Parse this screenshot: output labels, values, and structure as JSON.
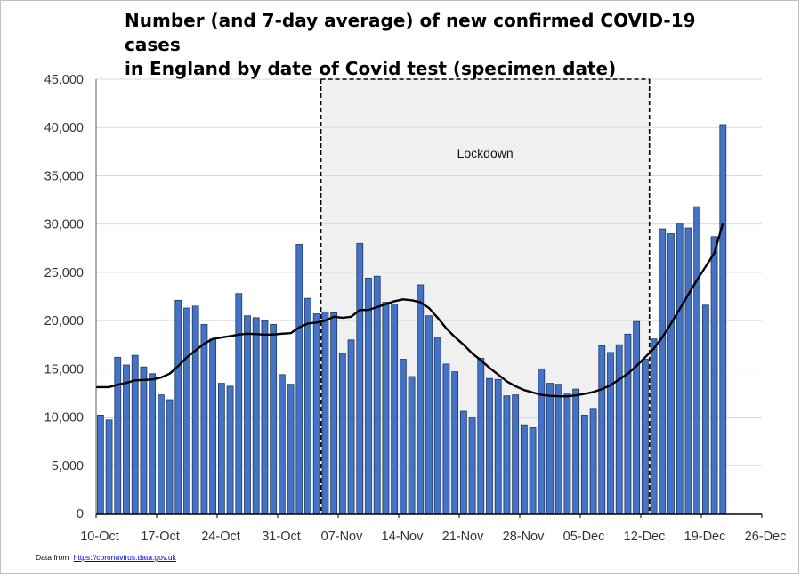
{
  "title_lines": [
    "Number (and 7-day average) of new confirmed COVID-19 cases",
    "in England by date of Covid test (specimen date)"
  ],
  "footnote": {
    "prefix": "Data from",
    "link_text": "https://coronavirus.data.gov.uk"
  },
  "chart_data": {
    "type": "bar",
    "title": "Number (and 7-day average) of new confirmed COVID-19 cases in England by date of Covid test (specimen date)",
    "ylim": [
      0,
      45000
    ],
    "yticks": [
      0,
      5000,
      10000,
      15000,
      20000,
      25000,
      30000,
      35000,
      40000,
      45000
    ],
    "ytick_labels": [
      "0",
      "5,000",
      "10,000",
      "15,000",
      "20,000",
      "25,000",
      "30,000",
      "35,000",
      "40,000",
      "45,000"
    ],
    "xtick_labels": [
      "10-Oct",
      "17-Oct",
      "24-Oct",
      "31-Oct",
      "07-Nov",
      "14-Nov",
      "21-Nov",
      "28-Nov",
      "05-Dec",
      "12-Dec",
      "19-Dec",
      "26-Dec"
    ],
    "x_day_count": 77,
    "grid": true,
    "bar_color": "#4472c4",
    "bar_edge_color": "#1f3864",
    "line_color": "#000000",
    "series": [
      {
        "type": "bar",
        "values": [
          10200,
          9700,
          16200,
          15400,
          16400,
          15200,
          14500,
          12300,
          11800,
          22100,
          21300,
          21500,
          19600,
          18100,
          13500,
          13200,
          22800,
          20500,
          20300,
          20000,
          19600,
          14400,
          13400,
          27900,
          22300,
          20700,
          20900,
          20800,
          16600,
          18000,
          28000,
          24400,
          24600,
          21900,
          21700,
          16000,
          14200,
          23700,
          20500,
          18200,
          15500,
          14700,
          10600,
          10000,
          16100,
          14000,
          13900,
          12200,
          12300,
          9200,
          8900,
          15000,
          13500,
          13400,
          12500,
          12900,
          10200,
          10900,
          17400,
          16700,
          17500,
          18600,
          19900,
          16000,
          18100,
          29500,
          29000,
          30000,
          29600,
          31800,
          21600,
          28700,
          40300
        ]
      },
      {
        "type": "line",
        "values": [
          13100,
          13100,
          13350,
          13550,
          13800,
          13850,
          13900,
          14100,
          14500,
          15300,
          16200,
          16900,
          17600,
          18100,
          18250,
          18400,
          18550,
          18650,
          18600,
          18550,
          18550,
          18650,
          18700,
          19300,
          19700,
          19800,
          20000,
          20400,
          20300,
          20400,
          21100,
          21100,
          21400,
          21700,
          22000,
          22200,
          22100,
          21900,
          21300,
          20300,
          19200,
          18300,
          17500,
          16600,
          15900,
          15100,
          14400,
          13700,
          13200,
          12800,
          12550,
          12300,
          12200,
          12150,
          12150,
          12250,
          12400,
          12600,
          12900,
          13300,
          13900,
          14500,
          15300,
          16200,
          17100,
          18300,
          19700,
          21200,
          22700,
          24200,
          25600,
          27000,
          30100
        ]
      }
    ],
    "annotations": [
      {
        "text": "Lockdown",
        "shaded_x_range": [
          26,
          64
        ]
      }
    ]
  }
}
